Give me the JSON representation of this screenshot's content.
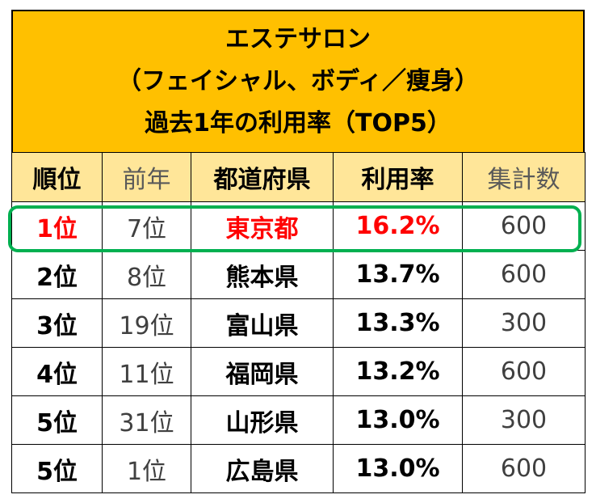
{
  "chart_data": {
    "type": "table",
    "title_lines": [
      "エステサロン",
      "（フェイシャル、ボディ／痩身）",
      "過去1年の利用率（TOP5）"
    ],
    "columns": [
      "順位",
      "前年",
      "都道府県",
      "利用率",
      "集計数"
    ],
    "rows": [
      {
        "rank": "1位",
        "prev": "7位",
        "pref": "東京都",
        "rate": "16.2%",
        "count": "600"
      },
      {
        "rank": "2位",
        "prev": "8位",
        "pref": "熊本県",
        "rate": "13.7%",
        "count": "600"
      },
      {
        "rank": "3位",
        "prev": "19位",
        "pref": "富山県",
        "rate": "13.3%",
        "count": "300"
      },
      {
        "rank": "4位",
        "prev": "11位",
        "pref": "福岡県",
        "rate": "13.2%",
        "count": "600"
      },
      {
        "rank": "5位",
        "prev": "31位",
        "pref": "山形県",
        "rate": "13.0%",
        "count": "300"
      },
      {
        "rank": "5位",
        "prev": "1位",
        "pref": "広島県",
        "rate": "13.0%",
        "count": "600"
      }
    ]
  },
  "colors": {
    "title_bg": "#FFC000",
    "header_bg": "#FFE699",
    "highlight_text": "#FF0000",
    "highlight_border": "#00B050"
  }
}
